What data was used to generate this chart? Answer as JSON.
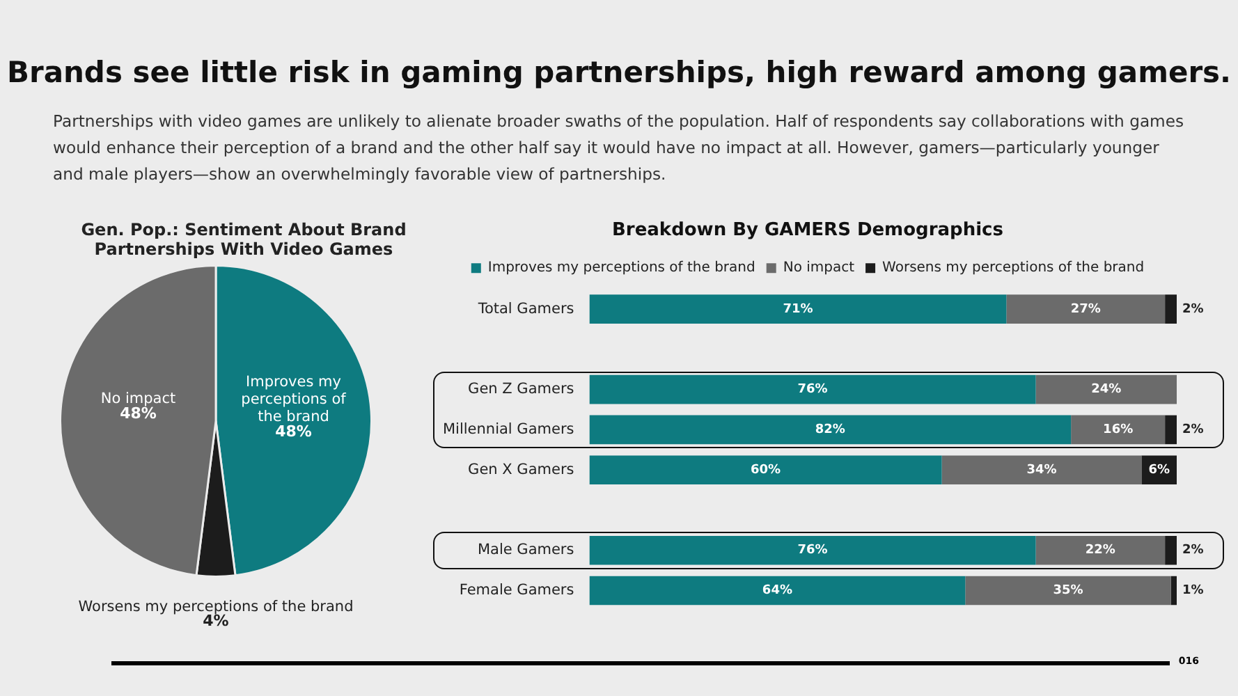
{
  "chart_data": [
    {
      "type": "other",
      "title": "Brands see little risk in gaming partnerships, high reward among gamers.",
      "subtitle": "Partnerships with video games are unlikely to alienate broader swaths of the population. Half of respondents say collaborations with games would enhance their perception of a brand and the other half say it would have no impact at all. However, gamers—particularly younger and male players—show an overwhelmingly favorable view of partnerships.",
      "annotations": [
        "016"
      ]
    },
    {
      "type": "pie",
      "title": "Gen. Pop.: Sentiment About Brand Partnerships With Video Games",
      "categories": [
        "Improves my perceptions of the brand",
        "Worsens my perceptions of the brand",
        "No impact"
      ],
      "values": [
        48,
        4,
        48
      ],
      "colors": [
        "#0e7b80",
        "#1c1c1c",
        "#6b6b6b"
      ],
      "value_labels": [
        "48%",
        "4%",
        "48%"
      ]
    },
    {
      "type": "bar",
      "title": "Breakdown By GAMERS Demographics",
      "orientation": "horizontal",
      "stacked": true,
      "legend": "top",
      "tick_labels": "y",
      "xlim": [
        0,
        100
      ],
      "categories": [
        "Total Gamers",
        null,
        "Gen Z Gamers",
        "Millennial Gamers",
        "Gen X Gamers",
        null,
        "Male Gamers",
        "Female Gamers"
      ],
      "series": [
        {
          "name": "Improves my perceptions of the brand",
          "color": "#0e7b80",
          "values": [
            71,
            null,
            76,
            82,
            60,
            null,
            76,
            64
          ],
          "value_labels": [
            "71%",
            null,
            "76%",
            "82%",
            "60%",
            null,
            "76%",
            "64%"
          ]
        },
        {
          "name": "No impact",
          "color": "#6b6b6b",
          "values": [
            27,
            null,
            24,
            16,
            34,
            null,
            22,
            35
          ],
          "value_labels": [
            "27%",
            null,
            "24%",
            "16%",
            "34%",
            null,
            "22%",
            "35%"
          ]
        },
        {
          "name": "Worsens my perceptions of the brand",
          "color": "#1c1c1c",
          "values": [
            2,
            null,
            null,
            2,
            6,
            null,
            2,
            1
          ],
          "value_labels": [
            "2%",
            null,
            null,
            "2%",
            "6%",
            null,
            "2%",
            "1%"
          ]
        }
      ]
    }
  ]
}
